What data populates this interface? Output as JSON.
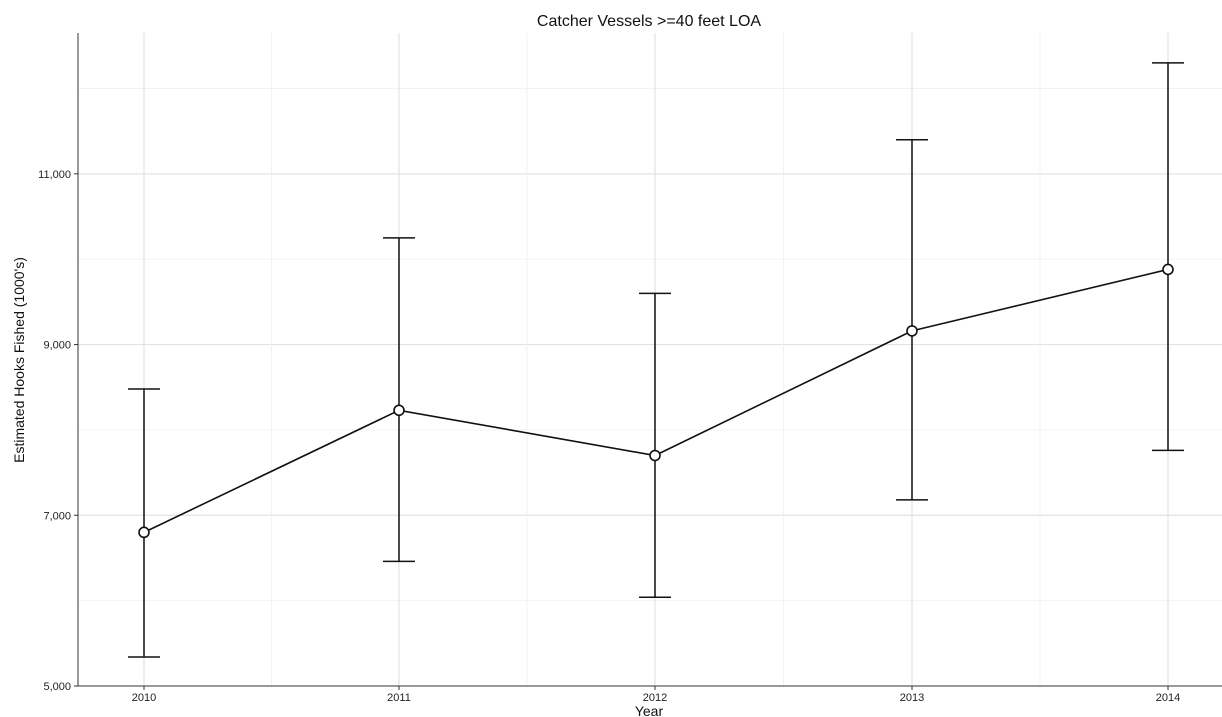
{
  "chart_data": {
    "type": "line",
    "title": "Catcher Vessels >=40 feet LOA",
    "xlabel": "Year",
    "ylabel": "Estimated Hooks Fished (1000's)",
    "x": [
      "2010",
      "2011",
      "2012",
      "2013",
      "2014"
    ],
    "values": [
      6800,
      8230,
      7700,
      9160,
      9880
    ],
    "error_low": [
      5340,
      6460,
      6040,
      7180,
      7760
    ],
    "error_high": [
      8480,
      10250,
      9600,
      11400,
      12300
    ],
    "ylim": [
      5000,
      12650
    ],
    "yticks": [
      5000,
      7000,
      9000,
      11000
    ],
    "ytick_labels": [
      "5,000",
      "7,000",
      "9,000",
      "11,000"
    ],
    "grid": true,
    "markers": "open circles",
    "error_bars": true
  }
}
